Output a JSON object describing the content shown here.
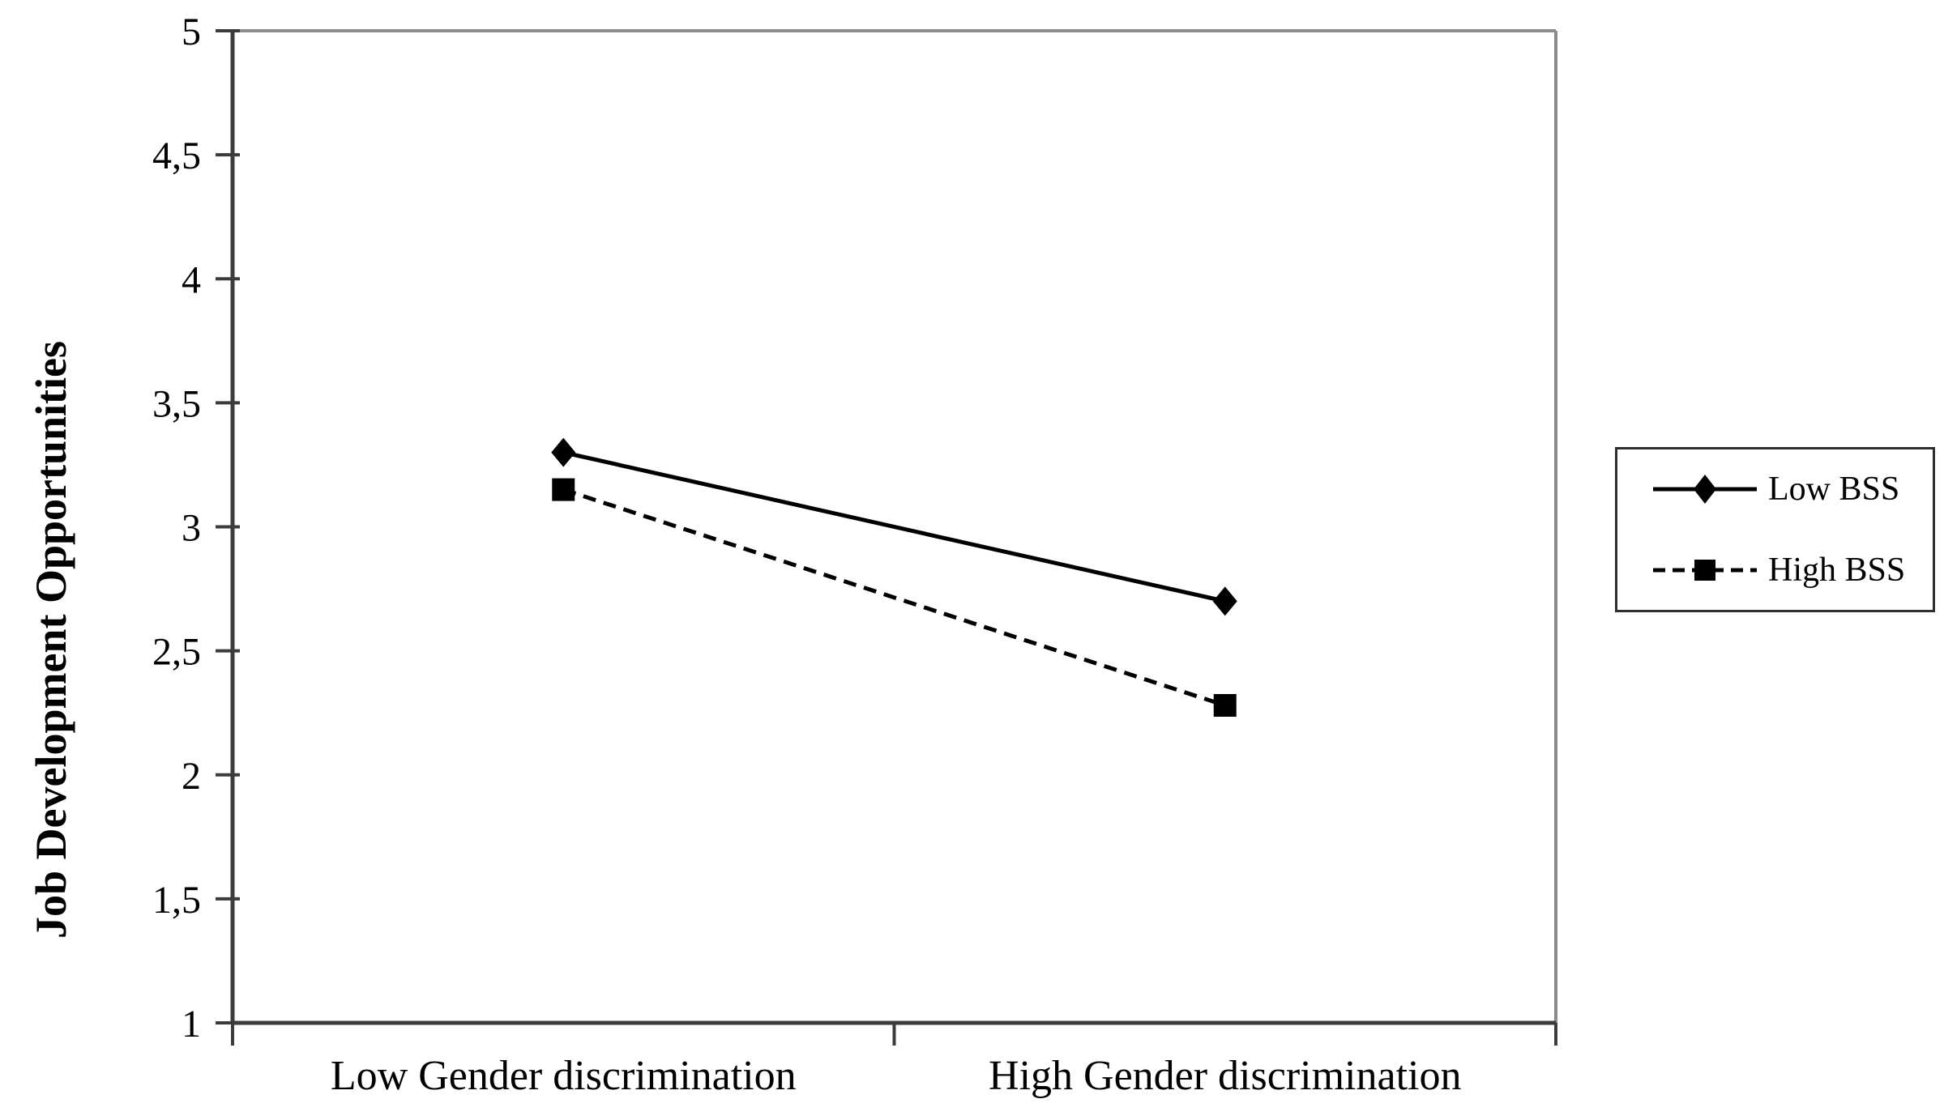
{
  "chart_data": {
    "type": "line",
    "title": "",
    "xlabel": "",
    "ylabel": "Job Development Opportunities",
    "categories": [
      "Low Gender discrimination",
      "High Gender discrimination"
    ],
    "series": [
      {
        "name": "Low BSS",
        "values": [
          3.3,
          2.7
        ],
        "line_style": "solid",
        "marker": "diamond"
      },
      {
        "name": "High BSS",
        "values": [
          3.15,
          2.28
        ],
        "line_style": "dashed",
        "marker": "square"
      }
    ],
    "ylim": [
      1,
      5
    ],
    "ytick_step": 0.5,
    "ytick_labels": [
      "1",
      "1,5",
      "2",
      "2,5",
      "3",
      "3,5",
      "4",
      "4,5",
      "5"
    ],
    "decimal_separator": ",",
    "grid": false,
    "legend_position": "right",
    "colors": {
      "series_line": "#000000",
      "marker": "#000000",
      "text": "#000000",
      "axis": "#3b3b3b",
      "plot_border": "#8c8c8c",
      "legend_border": "#2e2e2e",
      "background": "#ffffff"
    }
  }
}
